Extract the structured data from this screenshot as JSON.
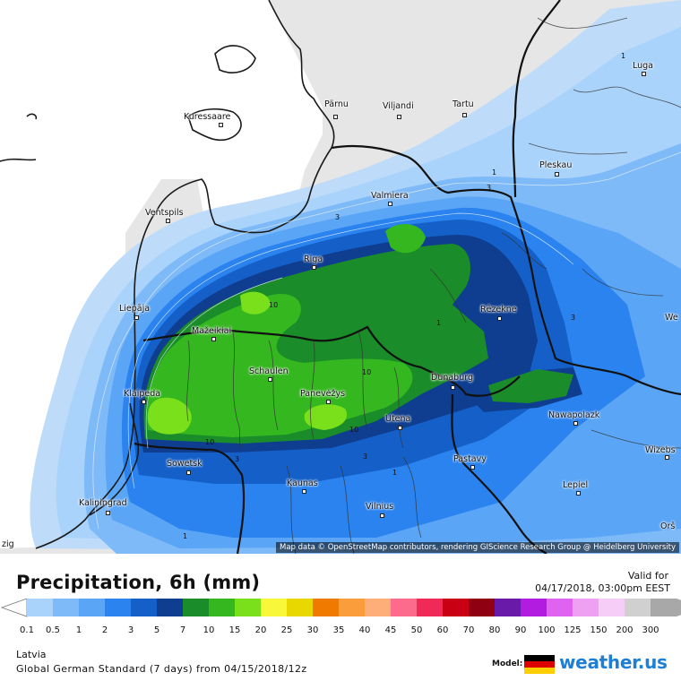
{
  "map": {
    "attribution": "Map data © OpenStreetMap contributors, rendering GIScience Research Group @ Heidelberg University",
    "cities": [
      {
        "id": "parnu",
        "name": "Pärnu"
      },
      {
        "id": "viljandi",
        "name": "Viljandi"
      },
      {
        "id": "tartu",
        "name": "Tartu"
      },
      {
        "id": "kuressaare",
        "name": "Kuressaare"
      },
      {
        "id": "luga",
        "name": "Luga"
      },
      {
        "id": "pleskau",
        "name": "Pleskau"
      },
      {
        "id": "valmiera",
        "name": "Valmiera"
      },
      {
        "id": "ventspils",
        "name": "Ventspils"
      },
      {
        "id": "riga",
        "name": "Riga"
      },
      {
        "id": "liepaja",
        "name": "Liepāja"
      },
      {
        "id": "rezekne",
        "name": "Rēzekne"
      },
      {
        "id": "mazeikiai",
        "name": "Mažeikiai"
      },
      {
        "id": "schaulen",
        "name": "Schaulen"
      },
      {
        "id": "klaipeda",
        "name": "Klaipeda"
      },
      {
        "id": "panevezys",
        "name": "Panevėžys"
      },
      {
        "id": "dunaburg",
        "name": "Dunaburg"
      },
      {
        "id": "navapolazk",
        "name": "Nawapolazk"
      },
      {
        "id": "utena",
        "name": "Utena"
      },
      {
        "id": "wizebsk",
        "name": "Wizebs"
      },
      {
        "id": "sowetsk",
        "name": "Sowetsk"
      },
      {
        "id": "pastavy",
        "name": "Pastavy"
      },
      {
        "id": "kaunas",
        "name": "Kaunas"
      },
      {
        "id": "lepiel",
        "name": "Lepiel"
      },
      {
        "id": "kaliningrad",
        "name": "Kaliningrad"
      },
      {
        "id": "vilnius",
        "name": "Vilnius"
      },
      {
        "id": "orsa",
        "name": "Orš"
      },
      {
        "id": "we",
        "name": "We"
      },
      {
        "id": "zig",
        "name": "zig"
      }
    ],
    "contour_labels": [
      "1",
      "1",
      "3",
      "3",
      "10",
      "10",
      "10",
      "10",
      "3",
      "3",
      "1",
      "1",
      "3",
      "1"
    ]
  },
  "legend": {
    "title": "Precipitation, 6h (mm)",
    "valid_label": "Valid for",
    "valid_time": "04/17/2018, 03:00pm EEST",
    "region": "Latvia",
    "model_run": "Global German Standard (7 days) from 04/15/2018/12z",
    "model_label": "Model:",
    "brand": "weather.us",
    "ticks": [
      "0.1",
      "0.5",
      "1",
      "2",
      "3",
      "5",
      "7",
      "10",
      "15",
      "20",
      "25",
      "30",
      "35",
      "40",
      "45",
      "50",
      "60",
      "70",
      "80",
      "90",
      "100",
      "125",
      "150",
      "200",
      "300"
    ],
    "colors": [
      "#a9d3fb",
      "#7fbaf8",
      "#5aa5f5",
      "#2a83ef",
      "#1560c8",
      "#0f3e90",
      "#1b8c2a",
      "#35b81f",
      "#7ae01b",
      "#f8f73a",
      "#e9d800",
      "#f07a00",
      "#fb9d3a",
      "#fdae79",
      "#fc6b8c",
      "#ef2a56",
      "#c90014",
      "#8f0012",
      "#6a1aa8",
      "#b21ce0",
      "#e062f0",
      "#eea0f3",
      "#f5cdf7",
      "#d0d0d0",
      "#a8a8a8"
    ]
  }
}
